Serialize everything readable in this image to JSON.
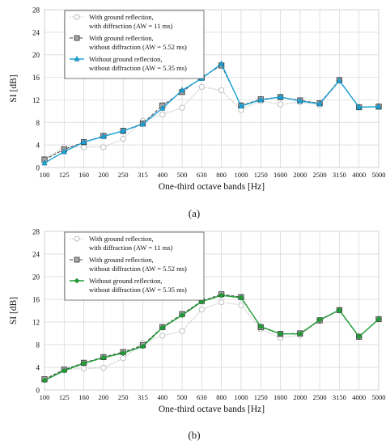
{
  "chart_data": [
    {
      "type": "line",
      "panel_label": "(a)",
      "xlabel": "One-third octave bands [Hz]",
      "ylabel": "SI [dB]",
      "ylim": [
        0,
        28
      ],
      "yticks": [
        0,
        4,
        8,
        12,
        16,
        20,
        24,
        28
      ],
      "grid": true,
      "legend_position": "top-left",
      "categories": [
        "100",
        "125",
        "160",
        "200",
        "250",
        "315",
        "400",
        "500",
        "630",
        "800",
        "1000",
        "1250",
        "1600",
        "2000",
        "2500",
        "3150",
        "4000",
        "5000"
      ],
      "series": [
        {
          "name": "With ground reflection, with diffraction (AW = 11 ms)",
          "legend_lines": [
            "With ground reflection,",
            "with diffraction (AW = 11 ms)"
          ],
          "color": "#b8b8b8",
          "line_style": "dotted",
          "marker": "circle",
          "values": [
            1.5,
            3.6,
            3.6,
            3.6,
            5.1,
            8.3,
            9.4,
            10.6,
            14.3,
            13.7,
            10.2,
            11.8,
            11.2,
            11.6,
            11.1,
            15.4,
            10.7,
            10.8
          ]
        },
        {
          "name": "With ground reflection, without diffraction (AW = 5.52 ms)",
          "legend_lines": [
            "With ground reflection,",
            "without diffraction (AW = 5.52 ms)"
          ],
          "color": "#444444",
          "line_style": "dashed",
          "marker": "square",
          "values": [
            1.4,
            3.2,
            4.5,
            5.6,
            6.5,
            7.8,
            11.0,
            13.4,
            16.0,
            18.1,
            11.0,
            12.1,
            12.5,
            11.9,
            11.4,
            15.5,
            10.7,
            10.8
          ]
        },
        {
          "name": "Without ground reflection, without diffraction (AW = 5.35 ms)",
          "legend_lines": [
            "Without ground reflection,",
            "without diffraction (AW = 5.35 ms)"
          ],
          "color": "#1ba3d6",
          "line_style": "solid",
          "marker": "triangle",
          "values": [
            0.8,
            2.8,
            4.5,
            5.5,
            6.5,
            7.7,
            10.5,
            13.7,
            15.8,
            18.4,
            10.9,
            12.0,
            12.5,
            11.8,
            11.3,
            15.4,
            10.7,
            10.8
          ]
        }
      ]
    },
    {
      "type": "line",
      "panel_label": "(b)",
      "xlabel": "One-third octave bands [Hz]",
      "ylabel": "SI [dB]",
      "ylim": [
        0,
        28
      ],
      "yticks": [
        0,
        4,
        8,
        12,
        16,
        20,
        24,
        28
      ],
      "grid": true,
      "legend_position": "top-left",
      "categories": [
        "100",
        "125",
        "160",
        "200",
        "250",
        "315",
        "400",
        "500",
        "630",
        "800",
        "1000",
        "1250",
        "1600",
        "2000",
        "2500",
        "3150",
        "4000",
        "5000"
      ],
      "series": [
        {
          "name": "With ground reflection, with diffraction (AW = 11 ms)",
          "legend_lines": [
            "With ground reflection,",
            "with diffraction (AW = 11 ms)"
          ],
          "color": "#b8b8b8",
          "line_style": "dotted",
          "marker": "circle",
          "values": [
            1.8,
            3.6,
            3.8,
            3.9,
            5.6,
            8.3,
            9.6,
            10.4,
            14.2,
            15.5,
            15.0,
            10.8,
            9.2,
            9.7,
            12.2,
            14.1,
            9.4,
            12.5
          ]
        },
        {
          "name": "With ground reflection, without diffraction (AW = 5.52 ms)",
          "legend_lines": [
            "With ground reflection,",
            "without diffraction (AW = 5.52 ms)"
          ],
          "color": "#444444",
          "line_style": "dashed",
          "marker": "square",
          "values": [
            1.9,
            3.6,
            4.8,
            5.8,
            6.7,
            7.9,
            11.1,
            13.4,
            15.7,
            16.9,
            16.4,
            11.1,
            9.9,
            10.0,
            12.3,
            14.1,
            9.4,
            12.5
          ]
        },
        {
          "name": "Without ground reflection, without diffraction (AW = 5.35 ms)",
          "legend_lines": [
            "Without ground reflection,",
            "without diffraction (AW = 5.35 ms)"
          ],
          "color": "#1e9e35",
          "line_style": "solid",
          "marker": "diamond",
          "values": [
            1.7,
            3.4,
            4.7,
            5.7,
            6.5,
            7.7,
            11.0,
            13.2,
            15.6,
            16.7,
            16.3,
            11.2,
            9.9,
            9.9,
            12.4,
            14.1,
            9.4,
            12.5
          ]
        }
      ]
    }
  ]
}
